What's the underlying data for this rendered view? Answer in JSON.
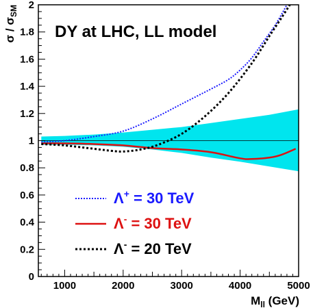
{
  "chart_data": {
    "type": "line",
    "title": "DY at LHC, LL model",
    "xlabel": "M",
    "xlabel_sub": "ll",
    "xlabel_unit": " (GeV)",
    "ylabel": "σ / σ",
    "ylabel_sub": "SM",
    "xlim": [
      550,
      5000
    ],
    "ylim": [
      0,
      2
    ],
    "xticks": [
      1000,
      2000,
      3000,
      4000,
      5000
    ],
    "yticks": [
      0,
      0.2,
      0.4,
      0.6,
      0.8,
      1,
      1.2,
      1.4,
      1.6,
      1.8,
      2
    ],
    "grid": false,
    "reference_line": 1,
    "band": {
      "color": "#00e5ee",
      "x": [
        600,
        1000,
        1500,
        2000,
        2500,
        3000,
        3500,
        4000,
        4500,
        5000
      ],
      "upper": [
        1.03,
        1.035,
        1.045,
        1.06,
        1.08,
        1.1,
        1.13,
        1.16,
        1.19,
        1.23
      ],
      "lower": [
        0.97,
        0.97,
        0.965,
        0.955,
        0.935,
        0.91,
        0.875,
        0.845,
        0.81,
        0.775
      ]
    },
    "series": [
      {
        "symbol": "Λ",
        "sup": "+",
        "value_text": " = 30 TeV",
        "color": "#1a1aff",
        "style": "dotted",
        "x": [
          600,
          1000,
          1500,
          2000,
          2500,
          3000,
          3500,
          3800,
          4000,
          4200,
          4400,
          4600,
          4800
        ],
        "y": [
          0.99,
          1.0,
          1.03,
          1.07,
          1.16,
          1.27,
          1.38,
          1.45,
          1.52,
          1.61,
          1.73,
          1.85,
          2.0
        ]
      },
      {
        "symbol": "Λ",
        "sup": "-",
        "value_text": " = 30 TeV",
        "color": "#dd1111",
        "style": "solid",
        "x": [
          600,
          1000,
          1500,
          2000,
          2500,
          3000,
          3500,
          4000,
          4200,
          4500,
          4700,
          4950
        ],
        "y": [
          0.98,
          0.98,
          0.975,
          0.965,
          0.945,
          0.935,
          0.915,
          0.87,
          0.865,
          0.875,
          0.895,
          0.94
        ]
      },
      {
        "symbol": "Λ",
        "sup": "-",
        "value_text": " = 20 TeV",
        "color": "#000000",
        "style": "dotted",
        "x": [
          600,
          1000,
          1500,
          1800,
          2000,
          2300,
          2600,
          3000,
          3400,
          3800,
          4200,
          4500,
          4700,
          4850
        ],
        "y": [
          0.975,
          0.965,
          0.94,
          0.925,
          0.92,
          0.935,
          0.97,
          1.05,
          1.18,
          1.35,
          1.57,
          1.77,
          1.9,
          2.0
        ]
      }
    ]
  }
}
